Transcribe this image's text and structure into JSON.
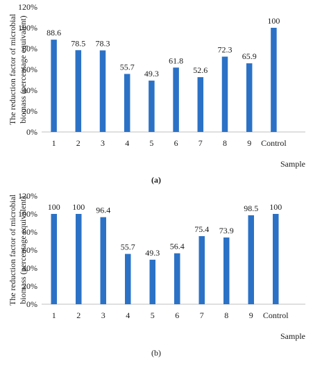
{
  "chart_data": [
    {
      "type": "bar",
      "panel_label": "(a)",
      "xlabel": "Sample",
      "ylabel_line1": "The reduction factor of microbial",
      "ylabel_line2": "biomass (percentage equivalent)",
      "categories": [
        "1",
        "2",
        "3",
        "4",
        "5",
        "6",
        "7",
        "8",
        "9",
        "Control"
      ],
      "values": [
        88.6,
        78.5,
        78.3,
        55.7,
        49.3,
        61.8,
        52.6,
        72.3,
        65.9,
        100
      ],
      "data_labels": [
        "88.6",
        "78.5",
        "78.3",
        "55.7",
        "49.3",
        "61.8",
        "52.6",
        "72.3",
        "65.9",
        "100"
      ],
      "ylim": [
        0,
        120
      ],
      "yticks": [
        "0%",
        "20%",
        "40%",
        "60%",
        "80%",
        "100%",
        "120%"
      ],
      "grid": false,
      "color": "#2b72c6"
    },
    {
      "type": "bar",
      "panel_label": "(b)",
      "xlabel": "Sample",
      "ylabel_line1": "The reduction factor of microbial",
      "ylabel_line2": "biomass (percentage equivalent)",
      "categories": [
        "1",
        "2",
        "3",
        "4",
        "5",
        "6",
        "7",
        "8",
        "9",
        "Control"
      ],
      "values": [
        100,
        100,
        96.4,
        55.7,
        49.3,
        56.4,
        75.4,
        73.9,
        98.5,
        100
      ],
      "data_labels": [
        "100",
        "100",
        "96.4",
        "55.7",
        "49.3",
        "56.4",
        "75.4",
        "73.9",
        "98.5",
        "100"
      ],
      "ylim": [
        0,
        120
      ],
      "yticks": [
        "0%",
        "20%",
        "40%",
        "60%",
        "80%",
        "100%",
        "120%"
      ],
      "grid": false,
      "color": "#2b72c6"
    }
  ]
}
